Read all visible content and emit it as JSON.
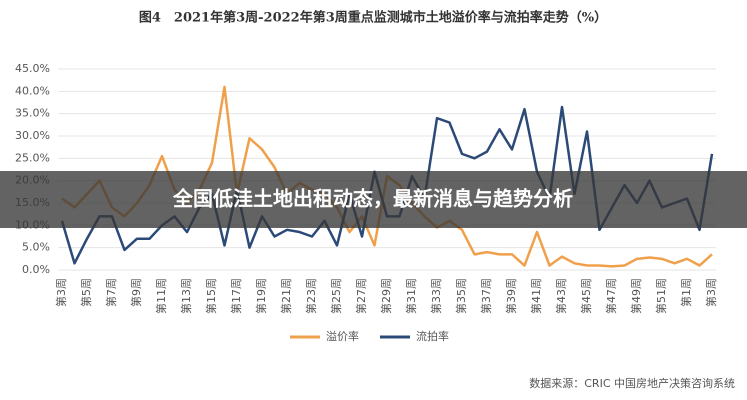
{
  "chart_data": {
    "type": "line",
    "title": "图4　2021年第3周-2022年第3周重点监测城市土地溢价率与流拍率走势（%）",
    "categories": [
      "第3周",
      null,
      "第5周",
      null,
      "第7周",
      null,
      "第9周",
      null,
      "第11周",
      null,
      "第13周",
      null,
      "第15周",
      null,
      "第17周",
      null,
      "第19周",
      null,
      "第21周",
      null,
      "第23周",
      null,
      "第25周",
      null,
      "第27周",
      null,
      "第29周",
      null,
      "第31周",
      null,
      "第33周",
      null,
      "第35周",
      null,
      "第37周",
      null,
      "第39周",
      null,
      "第41周",
      null,
      "第43周",
      null,
      "第45周",
      null,
      "第47周",
      null,
      "第49周",
      null,
      "第51周",
      null,
      "第1周",
      null,
      "第3周"
    ],
    "series": [
      {
        "name": "溢价率",
        "color": "#f0a04b",
        "values": [
          16,
          14,
          17,
          20,
          14,
          12,
          15,
          19,
          25.5,
          18,
          15,
          18,
          24,
          41,
          17,
          29.5,
          27,
          23,
          17,
          19.5,
          18,
          17,
          14,
          8.5,
          12,
          5.5,
          21,
          19,
          15,
          12,
          9.5,
          11,
          9,
          3.5,
          4,
          3.5,
          3.5,
          1,
          8.5,
          1,
          3,
          1.5,
          1,
          1,
          0.8,
          1,
          2.5,
          2.8,
          2.5,
          1.5,
          2.5,
          1,
          3.5
        ]
      },
      {
        "name": "流拍率",
        "color": "#2c4a78",
        "values": [
          11,
          1.5,
          7,
          12,
          12,
          4.5,
          7,
          7,
          10,
          12,
          8.5,
          14,
          17,
          5.5,
          18,
          5,
          12,
          7.5,
          9,
          8.5,
          7.5,
          11,
          5.5,
          17,
          7.5,
          22,
          12,
          12,
          21,
          16,
          34,
          33,
          26,
          25,
          26.5,
          31.5,
          27,
          36,
          22,
          16,
          36.5,
          17,
          31,
          9,
          14,
          19,
          15,
          20,
          14,
          15,
          16,
          9,
          26
        ]
      }
    ],
    "ylim": [
      0,
      45
    ],
    "yticks": [
      {
        "value": 0,
        "label": "0.0%"
      },
      {
        "value": 5,
        "label": "5.0%"
      },
      {
        "value": 10,
        "label": "10.0%"
      },
      {
        "value": 15,
        "label": "15.0%"
      },
      {
        "value": 20,
        "label": "20.0%"
      },
      {
        "value": 25,
        "label": "25.0%"
      },
      {
        "value": 30,
        "label": "30.0%"
      },
      {
        "value": 35,
        "label": "35.0%"
      },
      {
        "value": 40,
        "label": "40.0%"
      },
      {
        "value": 45,
        "label": "45.0%"
      }
    ],
    "source": "数据来源：CRIC 中国房地产决策咨询系统"
  },
  "banner": "全国低洼土地出租动态，最新消息与趋势分析"
}
